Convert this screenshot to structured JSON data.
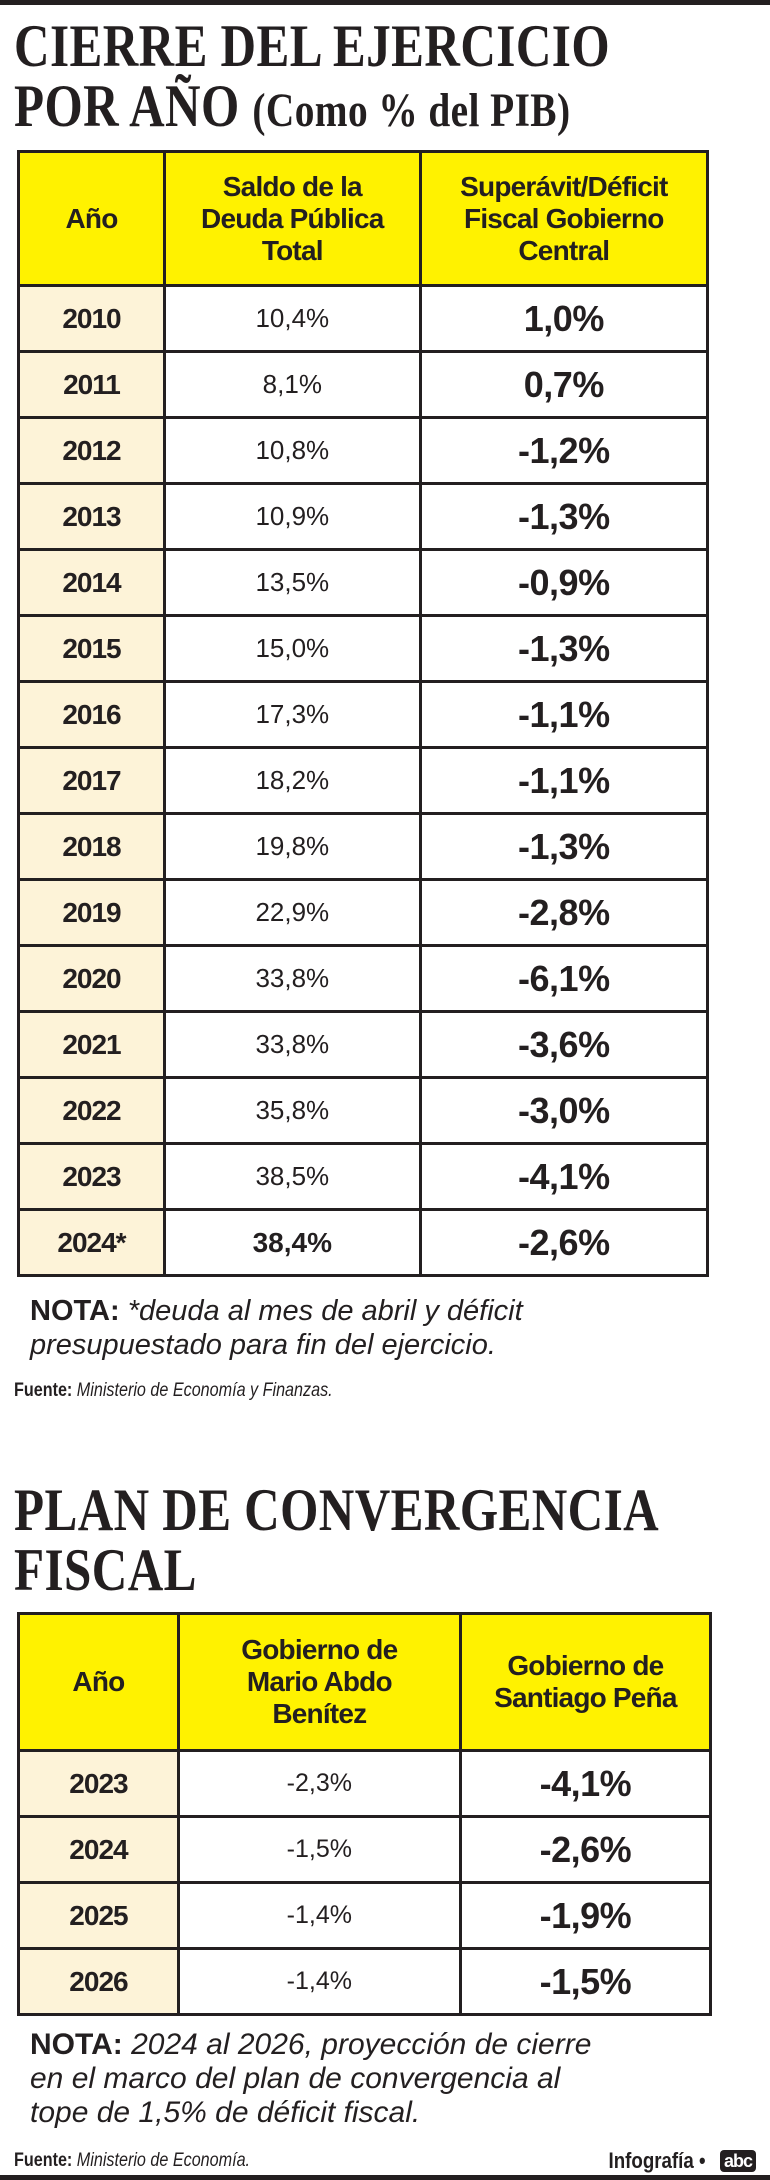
{
  "table1": {
    "title_line1": "CIERRE DEL EJERCICIO",
    "title_line2": "POR AÑO",
    "title_sub": "(Como % del PIB)",
    "headers": [
      "Año",
      "Saldo de la Deuda Pública Total",
      "Superávit/Déficit Fiscal  Gobierno Central"
    ],
    "rows": [
      [
        "2010",
        "10,4%",
        "1,0%"
      ],
      [
        "2011",
        "8,1%",
        "0,7%"
      ],
      [
        "2012",
        "10,8%",
        "-1,2%"
      ],
      [
        "2013",
        "10,9%",
        "-1,3%"
      ],
      [
        "2014",
        "13,5%",
        "-0,9%"
      ],
      [
        "2015",
        "15,0%",
        "-1,3%"
      ],
      [
        "2016",
        "17,3%",
        "-1,1%"
      ],
      [
        "2017",
        "18,2%",
        "-1,1%"
      ],
      [
        "2018",
        "19,8%",
        "-1,3%"
      ],
      [
        "2019",
        "22,9%",
        "-2,8%"
      ],
      [
        "2020",
        "33,8%",
        "-6,1%"
      ],
      [
        "2021",
        "33,8%",
        "-3,6%"
      ],
      [
        "2022",
        "35,8%",
        "-3,0%"
      ],
      [
        "2023",
        "38,5%",
        "-4,1%"
      ],
      [
        "2024*",
        "38,4%",
        "-2,6%"
      ]
    ],
    "note_label": "NOTA:",
    "note_line1": "*deuda al mes de abril y déficit",
    "note_line2": "presupuestado para fin del ejercicio.",
    "source_label": "Fuente:",
    "source": "Ministerio de Economía y Finanzas."
  },
  "table2": {
    "title_line1": "PLAN DE CONVERGENCIA",
    "title_line2": "FISCAL",
    "headers": [
      "Año",
      "Gobierno de Mario Abdo Benítez",
      "Gobierno de Santiago Peña"
    ],
    "rows": [
      [
        "2023",
        "-2,3%",
        "-4,1%"
      ],
      [
        "2024",
        "-1,5%",
        "-2,6%"
      ],
      [
        "2025",
        "-1,4%",
        "-1,9%"
      ],
      [
        "2026",
        "-1,4%",
        "-1,5%"
      ]
    ],
    "note_label": "NOTA:",
    "note_line1": "2024 al 2026, proyección de cierre",
    "note_line2": "en el marco del plan de convergencia al",
    "note_line3": "tope de 1,5% de déficit fiscal.",
    "source_label": "Fuente:",
    "source": "Ministerio de Economía."
  },
  "credit": {
    "label": "Infografía •",
    "logo": "abc COLOR"
  },
  "colors": {
    "header": "#fff200",
    "year_cell": "#fdf3d8",
    "ink": "#231f20"
  }
}
